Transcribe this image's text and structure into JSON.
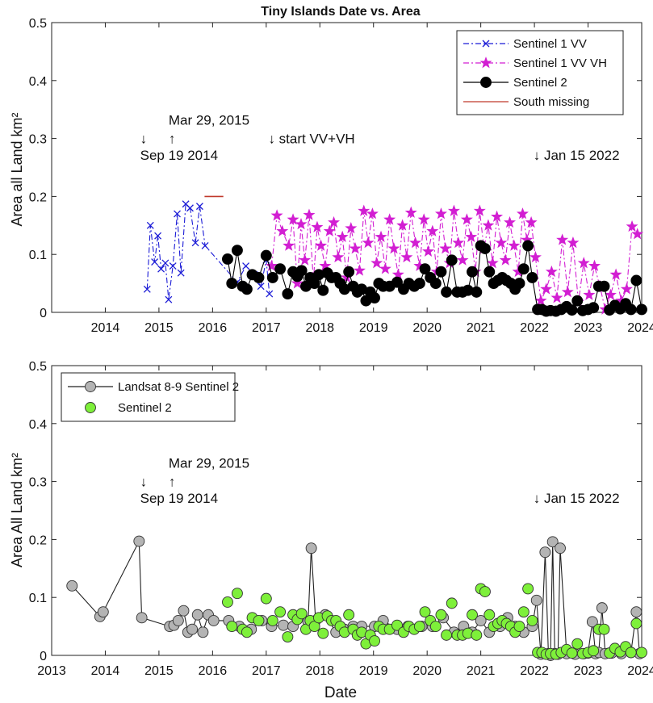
{
  "chart_data": [
    {
      "type": "line",
      "title": "Tiny Islands Date vs. Area",
      "xlabel": "",
      "ylabel": "Area all Land km²",
      "xlim": [
        2013.0,
        2024.0
      ],
      "ylim": [
        0,
        0.5
      ],
      "x_ticks": [
        "2014",
        "2015",
        "2016",
        "2017",
        "2018",
        "2019",
        "2020",
        "2021",
        "2022",
        "2023",
        "2024"
      ],
      "y_ticks": [
        "0",
        "0.1",
        "0.2",
        "0.3",
        "0.4",
        "0.5"
      ],
      "legend_position": "top-right",
      "annotations": [
        {
          "text": "↓",
          "x": 2014.71,
          "y": 0.292
        },
        {
          "text": "Sep 19 2014",
          "x": 2014.71,
          "y": 0.263
        },
        {
          "text": "Mar 29, 2015",
          "x": 2015.24,
          "y": 0.324
        },
        {
          "text": "↑",
          "x": 2015.24,
          "y": 0.292
        },
        {
          "text": "↓ start VV+VH",
          "x": 2017.1,
          "y": 0.292
        },
        {
          "text": "↓ Jan 15 2022",
          "x": 2022.04,
          "y": 0.263
        }
      ],
      "series": [
        {
          "name": "Sentinel 1 VV",
          "color": "#1b1bd6",
          "marker": "x",
          "line": "dashdot",
          "x": [
            2014.78,
            2014.84,
            2014.92,
            2014.98,
            2015.04,
            2015.12,
            2015.18,
            2015.26,
            2015.34,
            2015.41,
            2015.5,
            2015.58,
            2015.68,
            2015.76,
            2015.86,
            2016.46,
            2016.62,
            2016.78,
            2016.9,
            2017.0,
            2017.06
          ],
          "y": [
            0.04,
            0.15,
            0.087,
            0.132,
            0.075,
            0.085,
            0.022,
            0.08,
            0.17,
            0.068,
            0.187,
            0.18,
            0.12,
            0.183,
            0.115,
            0.052,
            0.08,
            0.065,
            0.045,
            0.09,
            0.032
          ]
        },
        {
          "name": "Sentinel 1 VV VH",
          "color": "#d21ed2",
          "marker": "star",
          "line": "dashdot",
          "x": [
            2017.1,
            2017.2,
            2017.3,
            2017.42,
            2017.5,
            2017.58,
            2017.65,
            2017.72,
            2017.8,
            2017.88,
            2017.95,
            2018.02,
            2018.1,
            2018.18,
            2018.26,
            2018.34,
            2018.42,
            2018.5,
            2018.58,
            2018.66,
            2018.74,
            2018.82,
            2018.9,
            2018.98,
            2019.06,
            2019.14,
            2019.22,
            2019.3,
            2019.38,
            2019.46,
            2019.54,
            2019.62,
            2019.7,
            2019.78,
            2019.86,
            2019.94,
            2020.02,
            2020.1,
            2020.18,
            2020.26,
            2020.34,
            2020.42,
            2020.5,
            2020.58,
            2020.66,
            2020.74,
            2020.82,
            2020.9,
            2020.98,
            2021.06,
            2021.14,
            2021.22,
            2021.3,
            2021.38,
            2021.46,
            2021.54,
            2021.62,
            2021.7,
            2021.78,
            2021.86,
            2021.94,
            2022.02,
            2022.12,
            2022.22,
            2022.32,
            2022.42,
            2022.52,
            2022.62,
            2022.72,
            2022.82,
            2022.92,
            2023.02,
            2023.12,
            2023.22,
            2023.32,
            2023.42,
            2023.52,
            2023.62,
            2023.72,
            2023.82,
            2023.92
          ],
          "y": [
            0.08,
            0.167,
            0.14,
            0.115,
            0.16,
            0.05,
            0.152,
            0.09,
            0.168,
            0.055,
            0.147,
            0.115,
            0.08,
            0.14,
            0.155,
            0.095,
            0.13,
            0.06,
            0.145,
            0.11,
            0.072,
            0.175,
            0.12,
            0.17,
            0.085,
            0.13,
            0.075,
            0.16,
            0.11,
            0.065,
            0.15,
            0.095,
            0.172,
            0.12,
            0.08,
            0.16,
            0.105,
            0.14,
            0.07,
            0.17,
            0.11,
            0.085,
            0.175,
            0.12,
            0.09,
            0.16,
            0.13,
            0.07,
            0.175,
            0.11,
            0.15,
            0.085,
            0.165,
            0.12,
            0.09,
            0.155,
            0.115,
            0.07,
            0.17,
            0.125,
            0.155,
            0.095,
            0.02,
            0.04,
            0.07,
            0.025,
            0.125,
            0.035,
            0.12,
            0.018,
            0.085,
            0.03,
            0.08,
            0.045,
            0.005,
            0.03,
            0.065,
            0.02,
            0.04,
            0.148,
            0.135
          ]
        },
        {
          "name": "Sentinel 2",
          "color": "#000000",
          "marker": "circle",
          "line": "solid",
          "x": [
            2016.28,
            2016.36,
            2016.46,
            2016.56,
            2016.64,
            2016.74,
            2016.86,
            2017.0,
            2017.12,
            2017.26,
            2017.4,
            2017.5,
            2017.58,
            2017.66,
            2017.74,
            2017.82,
            2017.9,
            2017.98,
            2018.06,
            2018.14,
            2018.22,
            2018.3,
            2018.38,
            2018.46,
            2018.54,
            2018.62,
            2018.7,
            2018.78,
            2018.86,
            2018.94,
            2019.02,
            2019.1,
            2019.18,
            2019.3,
            2019.44,
            2019.56,
            2019.66,
            2019.76,
            2019.86,
            2019.96,
            2020.06,
            2020.16,
            2020.26,
            2020.36,
            2020.46,
            2020.56,
            2020.66,
            2020.76,
            2020.84,
            2020.92,
            2021.0,
            2021.08,
            2021.16,
            2021.24,
            2021.32,
            2021.4,
            2021.48,
            2021.56,
            2021.64,
            2021.72,
            2021.8,
            2021.88,
            2021.96,
            2022.06,
            2022.14,
            2022.22,
            2022.3,
            2022.4,
            2022.5,
            2022.6,
            2022.7,
            2022.8,
            2022.9,
            2023.0,
            2023.1,
            2023.2,
            2023.3,
            2023.4,
            2023.5,
            2023.6,
            2023.7,
            2023.8,
            2023.9,
            2024.0
          ],
          "y": [
            0.092,
            0.05,
            0.107,
            0.045,
            0.04,
            0.065,
            0.06,
            0.098,
            0.06,
            0.075,
            0.032,
            0.07,
            0.062,
            0.072,
            0.045,
            0.06,
            0.05,
            0.065,
            0.038,
            0.068,
            0.06,
            0.06,
            0.05,
            0.04,
            0.07,
            0.045,
            0.035,
            0.04,
            0.02,
            0.035,
            0.025,
            0.05,
            0.045,
            0.045,
            0.052,
            0.04,
            0.05,
            0.045,
            0.05,
            0.075,
            0.06,
            0.05,
            0.07,
            0.035,
            0.09,
            0.035,
            0.035,
            0.038,
            0.07,
            0.035,
            0.115,
            0.11,
            0.07,
            0.05,
            0.055,
            0.06,
            0.055,
            0.05,
            0.04,
            0.05,
            0.075,
            0.115,
            0.06,
            0.005,
            0.005,
            0.002,
            0.003,
            0.002,
            0.005,
            0.01,
            0.004,
            0.02,
            0.003,
            0.005,
            0.008,
            0.045,
            0.045,
            0.004,
            0.012,
            0.006,
            0.015,
            0.005,
            0.055,
            0.005
          ]
        },
        {
          "name": "South missing",
          "color": "#c0392b",
          "marker": "none",
          "line": "solid",
          "x": [
            2015.85,
            2016.2
          ],
          "y": [
            0.2,
            0.2
          ]
        }
      ]
    },
    {
      "type": "line",
      "title": "",
      "xlabel": "Date",
      "ylabel": "Area All Land km²",
      "xlim": [
        2013.0,
        2024.0
      ],
      "ylim": [
        0,
        0.5
      ],
      "x_ticks": [
        "2013",
        "2014",
        "2015",
        "2016",
        "2017",
        "2018",
        "2019",
        "2020",
        "2021",
        "2022",
        "2023",
        "2024"
      ],
      "y_ticks": [
        "0",
        "0.1",
        "0.2",
        "0.3",
        "0.4",
        "0.5"
      ],
      "legend_position": "top-left",
      "annotations": [
        {
          "text": "↓",
          "x": 2014.71,
          "y": 0.292
        },
        {
          "text": "Sep 19 2014",
          "x": 2014.71,
          "y": 0.263
        },
        {
          "text": "Mar 29, 2015",
          "x": 2015.24,
          "y": 0.324
        },
        {
          "text": "↑",
          "x": 2015.24,
          "y": 0.292
        },
        {
          "text": "↓ Jan 15 2022",
          "x": 2022.04,
          "y": 0.263
        }
      ],
      "series": [
        {
          "name": "Landsat 8-9 Sentinel 2",
          "color": "#b4b4b4",
          "marker": "circle",
          "line": "solid",
          "x": [
            2013.38,
            2013.9,
            2013.96,
            2014.63,
            2014.68,
            2015.2,
            2015.28,
            2015.36,
            2015.46,
            2015.54,
            2015.62,
            2015.72,
            2015.82,
            2015.92,
            2016.02,
            2016.3,
            2016.5,
            2016.72,
            2016.92,
            2017.1,
            2017.32,
            2017.5,
            2017.66,
            2017.78,
            2017.84,
            2017.92,
            2018.1,
            2018.3,
            2018.46,
            2018.62,
            2018.78,
            2019.02,
            2019.18,
            2019.44,
            2019.64,
            2019.9,
            2020.1,
            2020.3,
            2020.5,
            2020.68,
            2020.84,
            2021.0,
            2021.16,
            2021.36,
            2021.5,
            2021.64,
            2021.8,
            2021.96,
            2022.04,
            2022.12,
            2022.2,
            2022.26,
            2022.3,
            2022.34,
            2022.38,
            2022.44,
            2022.48,
            2022.6,
            2022.76,
            2022.92,
            2023.0,
            2023.08,
            2023.14,
            2023.2,
            2023.26,
            2023.32,
            2023.44,
            2023.62,
            2023.8,
            2023.9,
            2023.96
          ],
          "y": [
            0.12,
            0.067,
            0.075,
            0.197,
            0.065,
            0.05,
            0.052,
            0.06,
            0.077,
            0.04,
            0.045,
            0.07,
            0.04,
            0.07,
            0.06,
            0.06,
            0.05,
            0.045,
            0.06,
            0.05,
            0.052,
            0.05,
            0.07,
            0.058,
            0.185,
            0.06,
            0.07,
            0.04,
            0.045,
            0.05,
            0.05,
            0.05,
            0.06,
            0.045,
            0.05,
            0.05,
            0.05,
            0.065,
            0.04,
            0.05,
            0.04,
            0.06,
            0.04,
            0.05,
            0.065,
            0.05,
            0.04,
            0.05,
            0.095,
            0.002,
            0.178,
            0.003,
            0.0,
            0.196,
            0.003,
            0.002,
            0.185,
            0.003,
            0.002,
            0.003,
            0.004,
            0.058,
            0.003,
            0.005,
            0.082,
            0.003,
            0.004,
            0.003,
            0.005,
            0.075,
            0.003
          ]
        },
        {
          "name": "Sentinel 2",
          "color": "#7ef03a",
          "marker": "circle",
          "line": "none",
          "x": [
            2016.28,
            2016.36,
            2016.46,
            2016.56,
            2016.64,
            2016.74,
            2016.86,
            2017.0,
            2017.12,
            2017.26,
            2017.4,
            2017.5,
            2017.58,
            2017.66,
            2017.74,
            2017.82,
            2017.9,
            2017.98,
            2018.06,
            2018.14,
            2018.22,
            2018.3,
            2018.38,
            2018.46,
            2018.54,
            2018.62,
            2018.7,
            2018.78,
            2018.86,
            2018.94,
            2019.02,
            2019.1,
            2019.18,
            2019.3,
            2019.44,
            2019.56,
            2019.66,
            2019.76,
            2019.86,
            2019.96,
            2020.06,
            2020.16,
            2020.26,
            2020.36,
            2020.46,
            2020.56,
            2020.66,
            2020.76,
            2020.84,
            2020.92,
            2021.0,
            2021.08,
            2021.16,
            2021.24,
            2021.32,
            2021.4,
            2021.48,
            2021.56,
            2021.64,
            2021.72,
            2021.8,
            2021.88,
            2021.96,
            2022.06,
            2022.14,
            2022.22,
            2022.3,
            2022.4,
            2022.5,
            2022.6,
            2022.7,
            2022.8,
            2022.9,
            2023.0,
            2023.1,
            2023.2,
            2023.3,
            2023.4,
            2023.5,
            2023.6,
            2023.7,
            2023.8,
            2023.9,
            2024.0
          ],
          "y": [
            0.092,
            0.05,
            0.107,
            0.045,
            0.04,
            0.065,
            0.06,
            0.098,
            0.06,
            0.075,
            0.032,
            0.07,
            0.062,
            0.072,
            0.045,
            0.06,
            0.05,
            0.065,
            0.038,
            0.068,
            0.06,
            0.06,
            0.05,
            0.04,
            0.07,
            0.045,
            0.035,
            0.04,
            0.02,
            0.035,
            0.025,
            0.05,
            0.045,
            0.045,
            0.052,
            0.04,
            0.05,
            0.045,
            0.05,
            0.075,
            0.06,
            0.05,
            0.07,
            0.035,
            0.09,
            0.035,
            0.035,
            0.038,
            0.07,
            0.035,
            0.115,
            0.11,
            0.07,
            0.05,
            0.055,
            0.06,
            0.055,
            0.05,
            0.04,
            0.05,
            0.075,
            0.115,
            0.06,
            0.005,
            0.005,
            0.002,
            0.003,
            0.002,
            0.005,
            0.01,
            0.004,
            0.02,
            0.003,
            0.005,
            0.008,
            0.045,
            0.045,
            0.004,
            0.012,
            0.006,
            0.015,
            0.005,
            0.055,
            0.005
          ]
        }
      ]
    }
  ]
}
